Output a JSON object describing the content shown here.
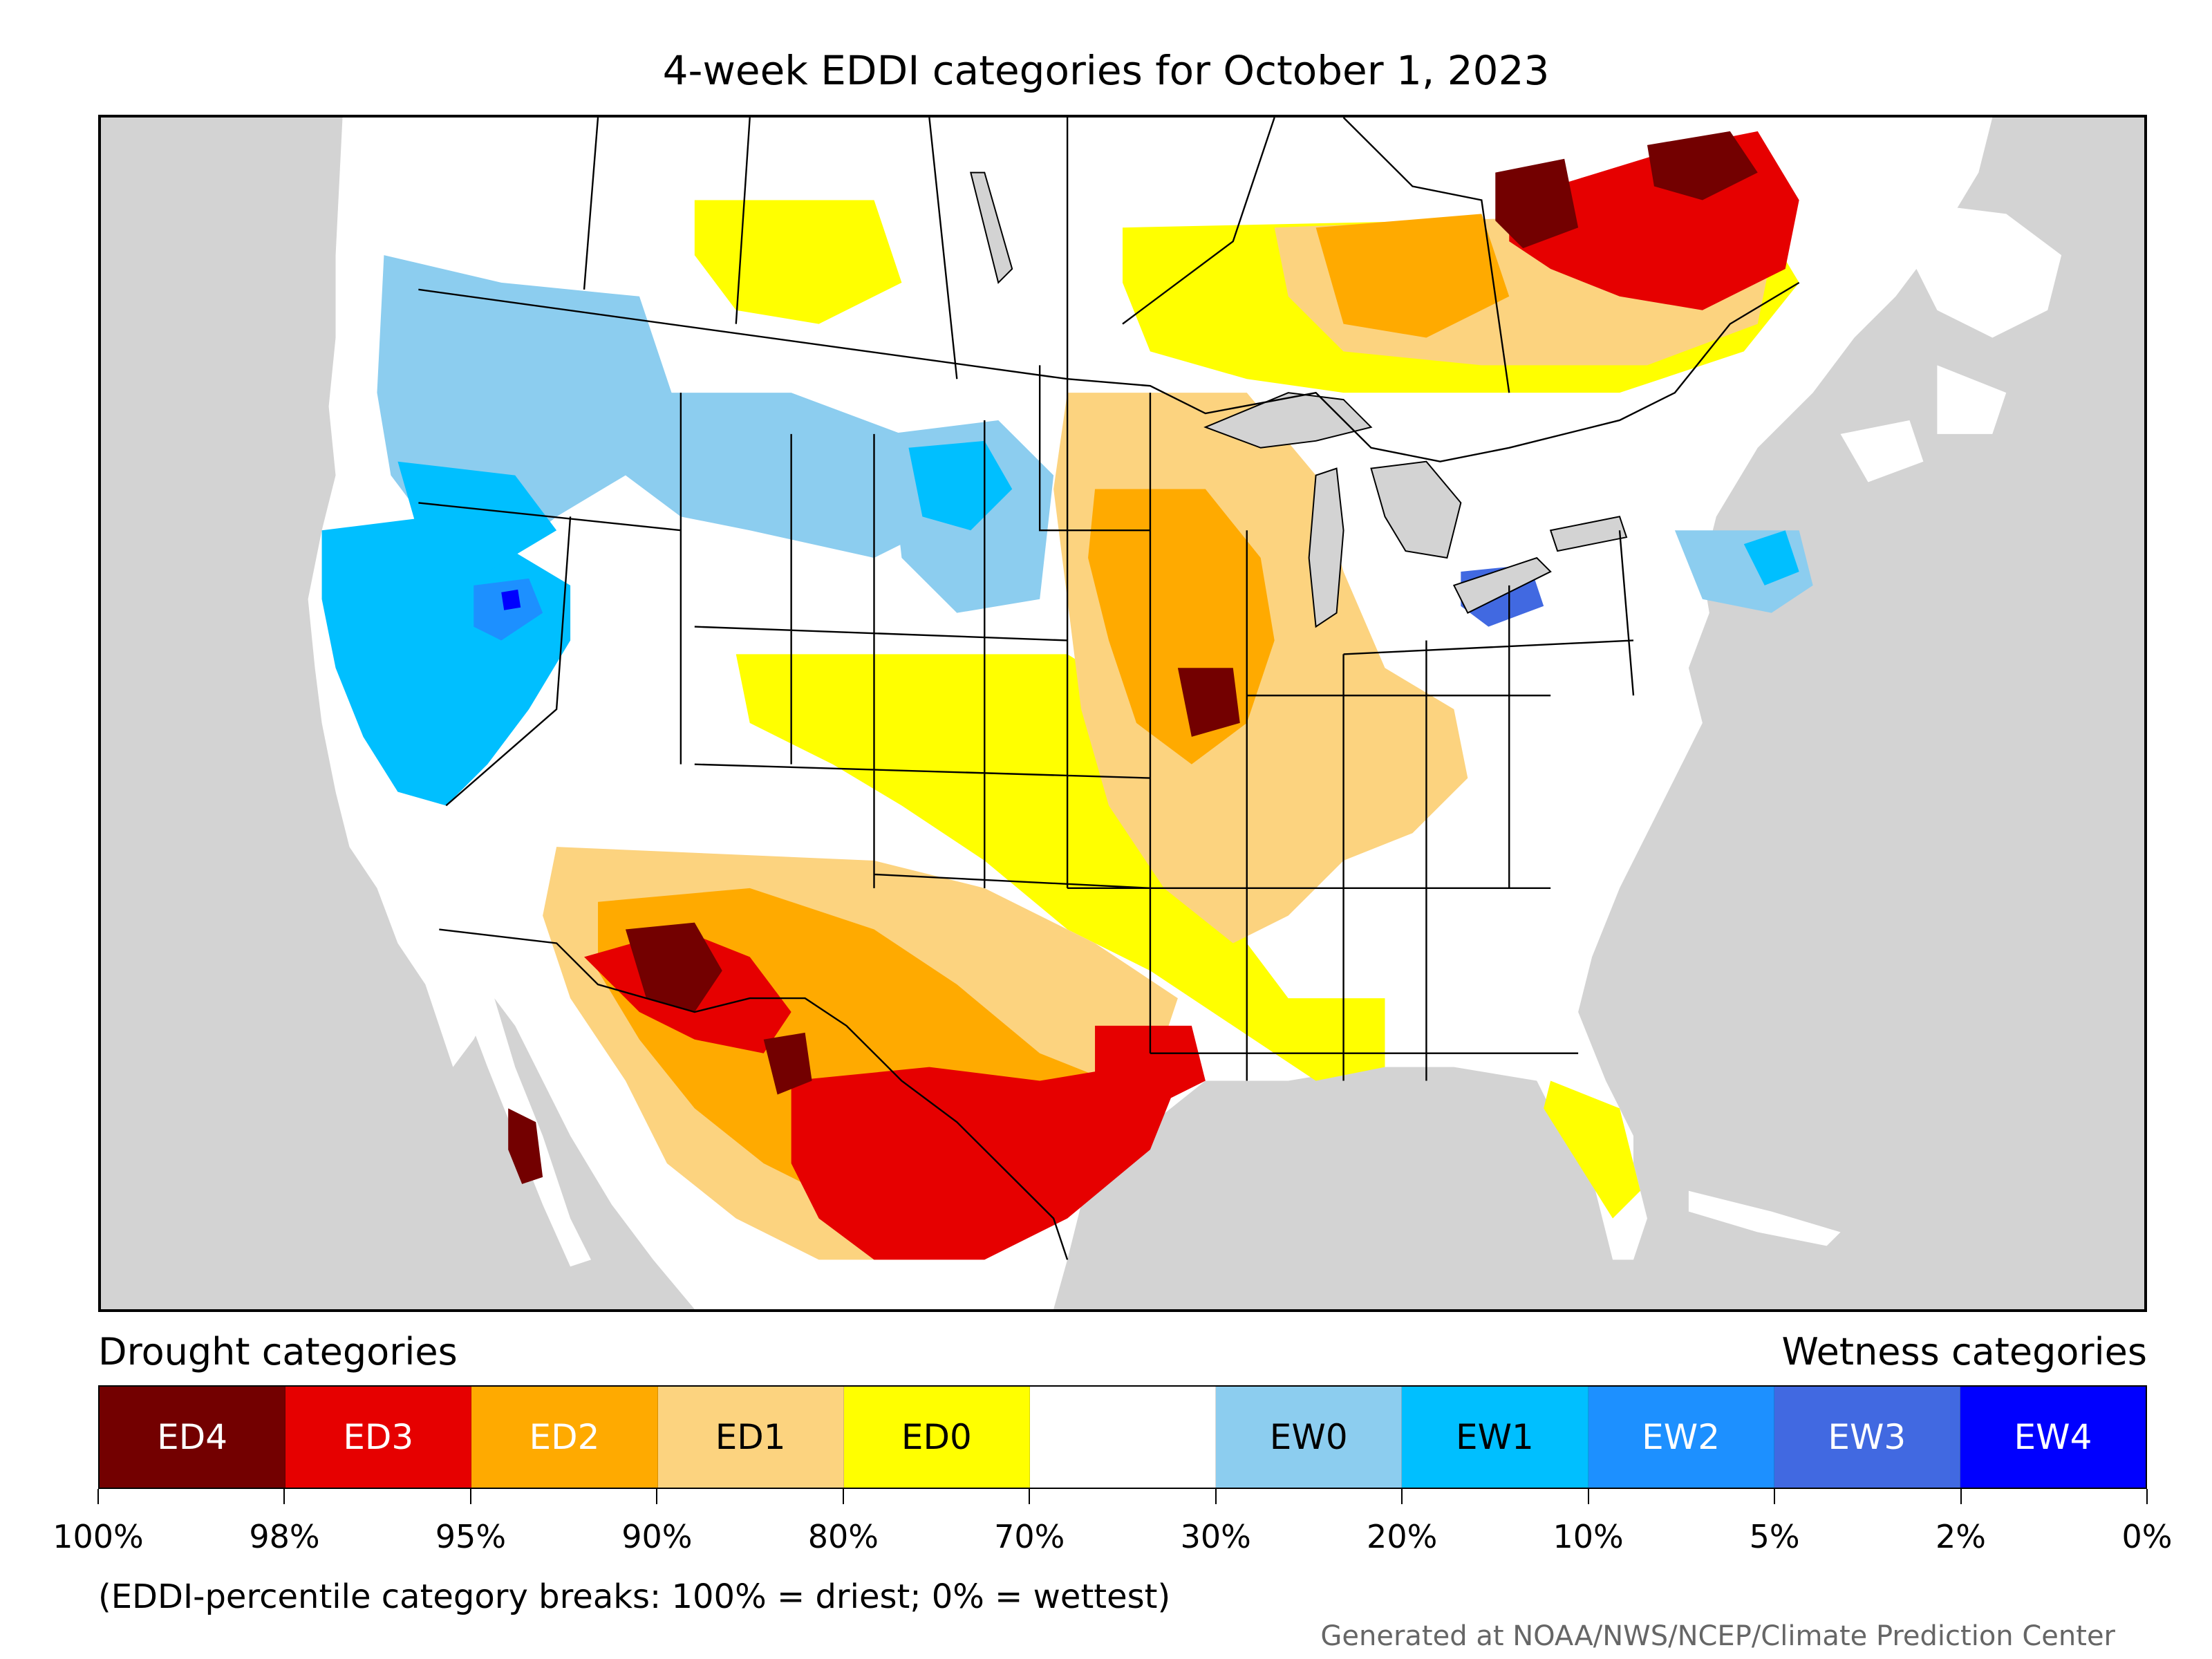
{
  "title": "4-week EDDI categories for October 1, 2023",
  "legend": {
    "drought_heading": "Drought categories",
    "wetness_heading": "Wetness categories",
    "categories": [
      {
        "label": "ED4",
        "color": "#730000",
        "text_color": "#ffffff"
      },
      {
        "label": "ED3",
        "color": "#e60000",
        "text_color": "#ffffff"
      },
      {
        "label": "ED2",
        "color": "#ffaa00",
        "text_color": "#ffffff"
      },
      {
        "label": "ED1",
        "color": "#fcd37f",
        "text_color": "#000000"
      },
      {
        "label": "ED0",
        "color": "#ffff00",
        "text_color": "#000000"
      },
      {
        "label": "",
        "color": "#ffffff",
        "text_color": "#000000"
      },
      {
        "label": "EW0",
        "color": "#8ccdef",
        "text_color": "#000000"
      },
      {
        "label": "EW1",
        "color": "#00bfff",
        "text_color": "#000000"
      },
      {
        "label": "EW2",
        "color": "#1d90ff",
        "text_color": "#ffffff"
      },
      {
        "label": "EW3",
        "color": "#4169e1",
        "text_color": "#ffffff"
      },
      {
        "label": "EW4",
        "color": "#0000ff",
        "text_color": "#ffffff"
      }
    ],
    "breaks": [
      "100%",
      "98%",
      "95%",
      "90%",
      "80%",
      "70%",
      "30%",
      "20%",
      "10%",
      "5%",
      "2%",
      "0%"
    ]
  },
  "note": "(EDDI-percentile category breaks: 100% = driest; 0% = wettest)",
  "credit": "Generated at NOAA/NWS/NCEP/Climate Prediction Center",
  "map": {
    "ocean_color": "#d3d3d3",
    "land_color": "#ffffff",
    "lake_color": "#d3d3d3",
    "border_color": "#000000"
  }
}
